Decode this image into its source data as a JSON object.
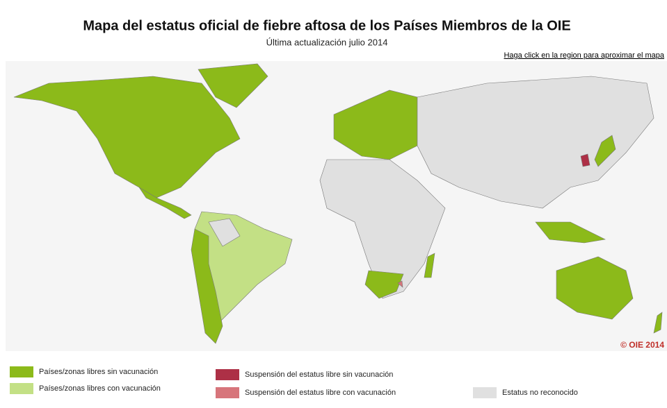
{
  "title": "Mapa del estatus oficial de fiebre aftosa de los Países Miembros de la OIE",
  "subtitle": "Última actualización julio 2014",
  "hint": "Haga click en la region para aproximar el mapa",
  "copyright": "© OIE 2014",
  "legend": [
    {
      "label": "Países/zonas libres sin vacunación",
      "color": "#8cba1a"
    },
    {
      "label": "Países/zonas libres con vacunación",
      "color": "#c3e085"
    },
    {
      "label": "Suspensión del estatus libre sin vacunación",
      "color": "#ad3046"
    },
    {
      "label": "Suspensión del estatus libre con vacunación",
      "color": "#d7757b"
    },
    {
      "label": "Estatus no reconocido",
      "color": "#e0e0e0"
    }
  ]
}
